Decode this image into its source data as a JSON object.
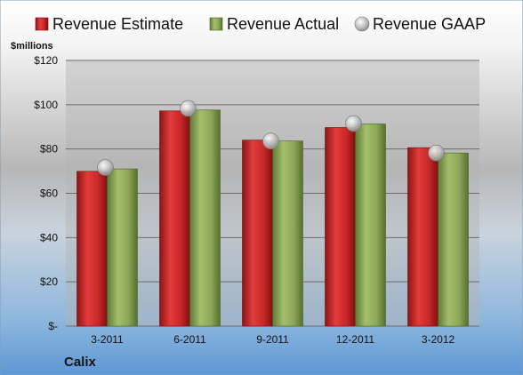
{
  "chart_data": {
    "type": "bar",
    "company": "Calix",
    "ylabel": "$millions",
    "categories": [
      "3-2011",
      "6-2011",
      "9-2011",
      "12-2011",
      "3-2012"
    ],
    "series": [
      {
        "name": "Revenue Estimate",
        "mark": "bar",
        "color": "#cc2b2b",
        "values": [
          69.9,
          97.2,
          84.0,
          89.7,
          80.6
        ]
      },
      {
        "name": "Revenue Actual",
        "mark": "bar",
        "color": "#8faa5c",
        "values": [
          71.0,
          97.6,
          83.6,
          91.3,
          78.2
        ]
      },
      {
        "name": "Revenue GAAP",
        "mark": "marker",
        "color": "#b9b9b9",
        "values": [
          71.6,
          98.3,
          83.6,
          91.5,
          78.2
        ]
      }
    ],
    "ylim": [
      0,
      120
    ],
    "yticks": [
      {
        "value": 0,
        "label": "$-"
      },
      {
        "value": 20,
        "label": "$20"
      },
      {
        "value": 40,
        "label": "$40"
      },
      {
        "value": 60,
        "label": "$60"
      },
      {
        "value": 80,
        "label": "$80"
      },
      {
        "value": 100,
        "label": "$100"
      },
      {
        "value": 120,
        "label": "$120"
      }
    ],
    "grid": true,
    "legend": "top"
  }
}
